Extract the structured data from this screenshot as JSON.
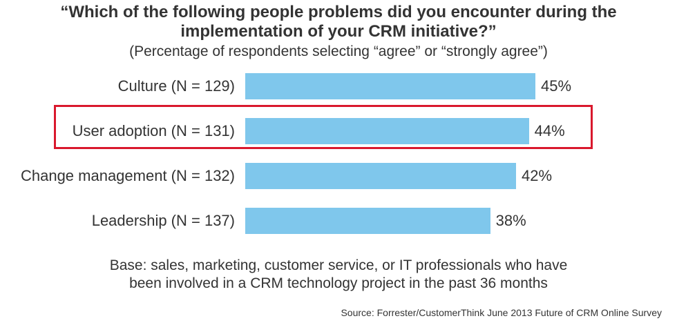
{
  "title_line1": "“Which of the following people problems did you encounter during the",
  "title_line2": "implementation of your CRM initiative?”",
  "subtitle": "(Percentage of respondents selecting  “agree” or “strongly agree”)",
  "base_line1": "Base: sales, marketing, customer service, or IT professionals who have",
  "base_line2": "been involved in a CRM technology project in the past 36 months",
  "source": "Source: Forrester/CustomerThink June 2013 Future of CRM Online Survey",
  "colors": {
    "bar": "#7fc7ec",
    "highlight": "#d9182d"
  },
  "chart_data": {
    "type": "bar",
    "orientation": "horizontal",
    "categories": [
      "Culture (N = 129)",
      "User adoption (N = 131)",
      "Change management (N = 132)",
      "Leadership (N = 137)"
    ],
    "values": [
      45,
      44,
      42,
      38
    ],
    "value_labels": [
      "45%",
      "44%",
      "42%",
      "38%"
    ],
    "highlighted_category": "User adoption (N = 131)",
    "xlim": [
      0,
      45
    ],
    "grid": false,
    "legend": "none"
  }
}
